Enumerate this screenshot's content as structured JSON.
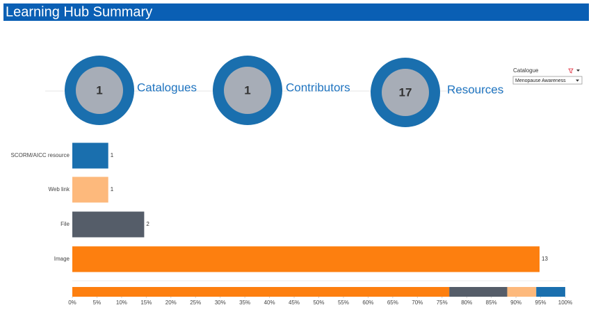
{
  "header": {
    "title": "Learning Hub Summary"
  },
  "kpis": [
    {
      "value": 1,
      "label": "Catalogues"
    },
    {
      "value": 1,
      "label": "Contributors"
    },
    {
      "value": 17,
      "label": "Resources"
    }
  ],
  "filter": {
    "label": "Catalogue",
    "value": "Menopause Awareness"
  },
  "chart_data": [
    {
      "type": "hbar",
      "categories": [
        "SCORM/AICC resource",
        "Web link",
        "File",
        "Image"
      ],
      "values": [
        1,
        1,
        2,
        13
      ],
      "colors": [
        "#1a6fae",
        "#fdb97c",
        "#555d69",
        "#fd7f0f"
      ]
    },
    {
      "type": "stacked100",
      "series": [
        {
          "color": "#fd7f0f",
          "values": [
            76.47
          ]
        },
        {
          "color": "#555d69",
          "values": [
            11.76
          ]
        },
        {
          "color": "#fdb97c",
          "values": [
            5.88
          ]
        },
        {
          "color": "#1a6fae",
          "values": [
            5.88
          ]
        }
      ],
      "xlim": [
        0,
        100
      ],
      "xticks": [
        {
          "value": 0,
          "label": "0%"
        },
        {
          "value": 5,
          "label": "5%"
        },
        {
          "value": 10,
          "label": "10%"
        },
        {
          "value": 15,
          "label": "15%"
        },
        {
          "value": 20,
          "label": "20%"
        },
        {
          "value": 25,
          "label": "25%"
        },
        {
          "value": 30,
          "label": "30%"
        },
        {
          "value": 35,
          "label": "35%"
        },
        {
          "value": 40,
          "label": "40%"
        },
        {
          "value": 45,
          "label": "45%"
        },
        {
          "value": 50,
          "label": "50%"
        },
        {
          "value": 55,
          "label": "55%"
        },
        {
          "value": 60,
          "label": "60%"
        },
        {
          "value": 65,
          "label": "65%"
        },
        {
          "value": 70,
          "label": "70%"
        },
        {
          "value": 75,
          "label": "75%"
        },
        {
          "value": 80,
          "label": "80%"
        },
        {
          "value": 85,
          "label": "85%"
        },
        {
          "value": 90,
          "label": "90%"
        },
        {
          "value": 95,
          "label": "95%"
        },
        {
          "value": 100,
          "label": "100%"
        }
      ]
    }
  ]
}
